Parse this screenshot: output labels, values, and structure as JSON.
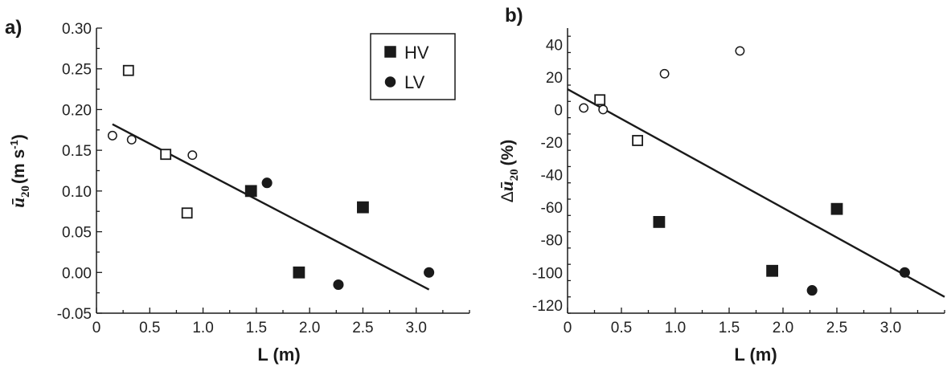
{
  "colors": {
    "ink": "#1a1a1a",
    "hollow_fill": "#ffffff"
  },
  "chart_data": [
    {
      "type": "scatter",
      "panel_label": "a)",
      "xlabel": "L (m)",
      "ylabel": {
        "symbol": "ū",
        "subscript": "20",
        "units": "(m s",
        "superscript": "-1",
        "close": ")"
      },
      "xlim": [
        0,
        3.5
      ],
      "ylim": [
        -0.05,
        0.3
      ],
      "x_ticks": [
        "0",
        "0.5",
        "1.0",
        "1.5",
        "2.0",
        "2.5",
        "3.0"
      ],
      "x_tick_values": [
        0,
        0.5,
        1.0,
        1.5,
        2.0,
        2.5,
        3.0
      ],
      "y_ticks": [
        "-0.05",
        "0.00",
        "0.05",
        "0.10",
        "0.15",
        "0.20",
        "0.25",
        "0.30"
      ],
      "y_tick_values": [
        -0.05,
        0.0,
        0.05,
        0.1,
        0.15,
        0.2,
        0.25,
        0.3
      ],
      "legend": {
        "placement": "top-right",
        "entries": [
          {
            "label": "HV",
            "marker": "square",
            "filled": true
          },
          {
            "label": "LV",
            "marker": "circle",
            "filled": true
          }
        ]
      },
      "series": [
        {
          "marker": "square",
          "filled": true,
          "x": [
            1.45,
            1.9,
            2.5
          ],
          "y": [
            0.1,
            0.0,
            0.08
          ]
        },
        {
          "marker": "circle",
          "filled": true,
          "x": [
            1.6,
            2.27,
            3.12
          ],
          "y": [
            0.11,
            -0.015,
            0.0
          ]
        },
        {
          "marker": "square",
          "filled": false,
          "x": [
            0.3,
            0.65,
            0.85
          ],
          "y": [
            0.248,
            0.145,
            0.073
          ]
        },
        {
          "marker": "circle",
          "filled": false,
          "x": [
            0.15,
            0.33,
            0.9
          ],
          "y": [
            0.168,
            0.163,
            0.144
          ]
        }
      ],
      "fit_line": {
        "x": [
          0.15,
          3.12
        ],
        "y": [
          0.182,
          -0.021
        ]
      },
      "grid": false
    },
    {
      "type": "scatter",
      "panel_label": "b)",
      "xlabel": "L (m)",
      "ylabel": {
        "prefix": "Δ",
        "symbol": "ū",
        "subscript": "20",
        "units": "(%)"
      },
      "xlim": [
        0,
        3.5
      ],
      "ylim": [
        -125,
        50
      ],
      "x_ticks": [
        "0",
        "0.5",
        "1.0",
        "1.5",
        "2.0",
        "2.5",
        "3.0"
      ],
      "x_tick_values": [
        0,
        0.5,
        1.0,
        1.5,
        2.0,
        2.5,
        3.0
      ],
      "y_ticks": [
        "-120",
        "-100",
        "-80",
        "-60",
        "-40",
        "-20",
        "0",
        "20",
        "40"
      ],
      "y_tick_values": [
        -120,
        -100,
        -80,
        -60,
        -40,
        -20,
        0,
        20,
        40
      ],
      "series": [
        {
          "marker": "square",
          "filled": true,
          "x": [
            0.85,
            1.9,
            2.5
          ],
          "y": [
            -69,
            -99,
            -61
          ]
        },
        {
          "marker": "circle",
          "filled": true,
          "x": [
            2.27,
            3.13
          ],
          "y": [
            -111,
            -100
          ]
        },
        {
          "marker": "square",
          "filled": false,
          "x": [
            0.3,
            0.65
          ],
          "y": [
            6,
            -19
          ]
        },
        {
          "marker": "circle",
          "filled": false,
          "x": [
            0.15,
            0.33,
            0.9,
            1.6
          ],
          "y": [
            1,
            0,
            22,
            36
          ]
        }
      ],
      "fit_line": {
        "x": [
          0,
          3.5
        ],
        "y": [
          12.5,
          -115
        ]
      },
      "grid": false
    }
  ]
}
